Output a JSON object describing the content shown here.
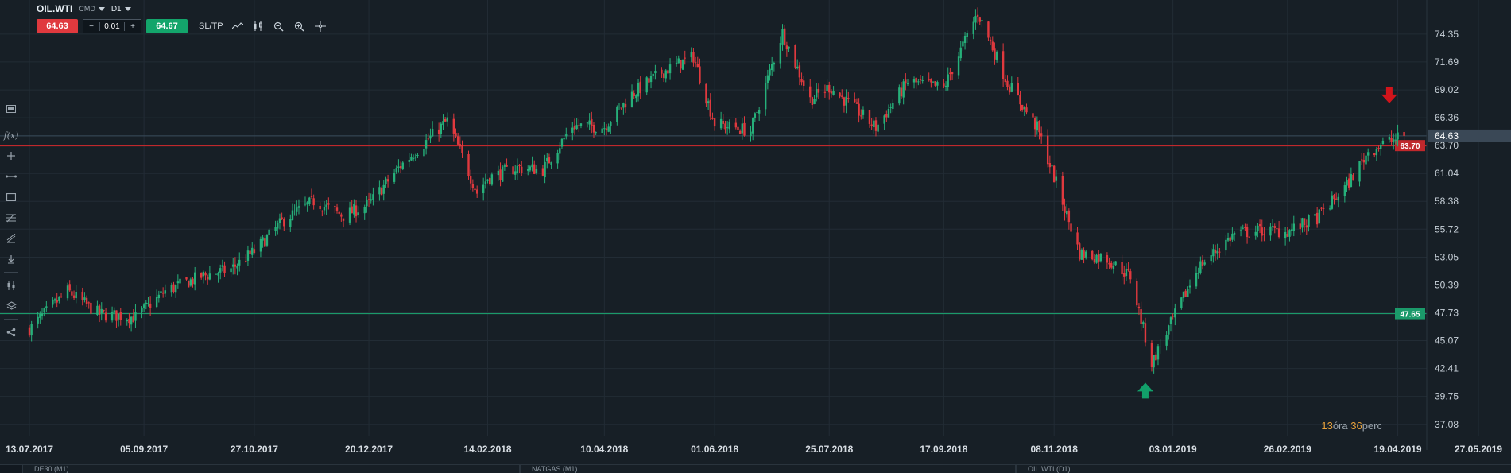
{
  "instrument": {
    "symbol": "OIL.WTI",
    "type": "CMD",
    "timeframe": "D1"
  },
  "trade": {
    "sell_price": "64.63",
    "buy_price": "64.67",
    "quantity": "0.01",
    "minus": "−",
    "plus": "+",
    "sltp_label": "SL/TP"
  },
  "countdown": {
    "hours": "13",
    "hours_label": "óra ",
    "minutes": "36",
    "minutes_label": "perc"
  },
  "bottom_tabs": [
    "DE30 (M1)",
    "NATGAS (M1)",
    "OIL.WTI (D1)"
  ],
  "icons": {
    "toolbar": [
      "line-chart-icon",
      "candles-icon",
      "zoom-out-icon",
      "zoom-in-icon",
      "crosshair-icon"
    ],
    "sidebar": [
      "panel-icon",
      "function-icon",
      "plus-icon",
      "line-tool-icon",
      "rectangle-icon",
      "fibonacci-icon",
      "trend-tool-icon",
      "download-icon",
      "indicators-icon",
      "layers-icon",
      "share-icon"
    ]
  },
  "colors": {
    "background": "#171f26",
    "bull": "#26b07a",
    "bear": "#e0393e",
    "resistance": "#c0282c",
    "support": "#1b9a6a",
    "current_price": "#3b4d5c"
  },
  "chart_data": {
    "type": "candlestick",
    "title": "",
    "xlabel": "",
    "ylabel": "",
    "x_ticks": [
      "13.07.2017",
      "05.09.2017",
      "27.10.2017",
      "20.12.2017",
      "14.02.2018",
      "10.04.2018",
      "01.06.2018",
      "25.07.2018",
      "17.09.2018",
      "08.11.2018",
      "03.01.2019",
      "26.02.2019",
      "19.04.2019",
      "27.05.2019"
    ],
    "y_ticks": [
      37.08,
      39.75,
      42.41,
      45.07,
      47.73,
      50.39,
      53.05,
      55.72,
      58.38,
      61.04,
      63.7,
      66.36,
      69.02,
      71.69,
      74.35
    ],
    "ylim": [
      36.0,
      77.0
    ],
    "grid": true,
    "series": [
      {
        "values": [
          [
            "2017-07-13",
            46.2
          ],
          [
            "2017-07-31",
            49.8
          ],
          [
            "2017-08-15",
            47.6
          ],
          [
            "2017-09-01",
            47.3
          ],
          [
            "2017-09-15",
            49.8
          ],
          [
            "2017-10-02",
            51.2
          ],
          [
            "2017-10-16",
            51.9
          ],
          [
            "2017-10-27",
            53.6
          ],
          [
            "2017-11-10",
            56.6
          ],
          [
            "2017-11-24",
            58.4
          ],
          [
            "2017-12-08",
            57.0
          ],
          [
            "2017-12-20",
            58.1
          ],
          [
            "2018-01-04",
            61.8
          ],
          [
            "2018-01-15",
            63.9
          ],
          [
            "2018-01-26",
            66.1
          ],
          [
            "2018-02-09",
            59.2
          ],
          [
            "2018-02-14",
            60.6
          ],
          [
            "2018-02-28",
            61.6
          ],
          [
            "2018-03-12",
            61.4
          ],
          [
            "2018-03-26",
            65.6
          ],
          [
            "2018-04-10",
            65.5
          ],
          [
            "2018-04-23",
            68.6
          ],
          [
            "2018-05-07",
            70.7
          ],
          [
            "2018-05-22",
            72.2
          ],
          [
            "2018-06-01",
            65.8
          ],
          [
            "2018-06-18",
            65.1
          ],
          [
            "2018-07-03",
            74.5
          ],
          [
            "2018-07-16",
            68.1
          ],
          [
            "2018-07-25",
            69.3
          ],
          [
            "2018-08-08",
            66.9
          ],
          [
            "2018-08-16",
            65.4
          ],
          [
            "2018-08-31",
            69.8
          ],
          [
            "2018-09-17",
            69.2
          ],
          [
            "2018-10-03",
            76.4
          ],
          [
            "2018-10-17",
            69.7
          ],
          [
            "2018-10-31",
            65.4
          ],
          [
            "2018-11-08",
            60.7
          ],
          [
            "2018-11-20",
            53.4
          ],
          [
            "2018-12-03",
            52.9
          ],
          [
            "2018-12-14",
            51.2
          ],
          [
            "2018-12-24",
            42.9
          ],
          [
            "2019-01-03",
            47.1
          ],
          [
            "2019-01-15",
            52.1
          ],
          [
            "2019-02-01",
            55.3
          ],
          [
            "2019-02-15",
            55.6
          ],
          [
            "2019-02-26",
            55.5
          ],
          [
            "2019-03-12",
            56.8
          ],
          [
            "2019-03-26",
            59.9
          ],
          [
            "2019-04-05",
            63.1
          ],
          [
            "2019-04-12",
            63.9
          ],
          [
            "2019-04-22",
            64.6
          ]
        ]
      }
    ],
    "current_price": 64.63,
    "levels": [
      {
        "name": "resistance",
        "value": 63.7,
        "label": "63.70"
      },
      {
        "name": "support",
        "value": 47.65,
        "label": "47.65"
      }
    ],
    "markers": [
      {
        "type": "arrow-down",
        "date": "2019-04-15",
        "value": 68.2
      },
      {
        "type": "arrow-up",
        "date": "2018-12-21",
        "value": 40.6
      }
    ]
  }
}
